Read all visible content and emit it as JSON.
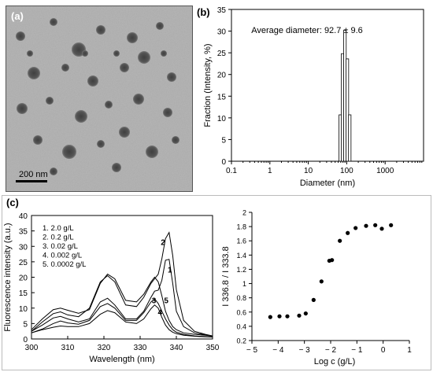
{
  "panels": {
    "a": {
      "label": "(a)",
      "scale_bar_label": "200 nm"
    },
    "b": {
      "label": "(b)"
    },
    "c": {
      "label": "(c)"
    }
  },
  "chart_data": [
    {
      "type": "bar",
      "panel": "b",
      "annotation": "Average diameter: 92.7 ± 9.6",
      "xlabel": "Diameter (nm)",
      "ylabel": "Fraction (Intensity, %)",
      "xscale": "log",
      "xlim": [
        0.1,
        10000
      ],
      "ylim": [
        0,
        35
      ],
      "xticks": [
        0.1,
        1,
        10,
        100,
        1000
      ],
      "xtick_labels": [
        "0.1",
        "1",
        "10",
        "100",
        "1000"
      ],
      "yticks": [
        0,
        5,
        10,
        15,
        20,
        25,
        30,
        35
      ],
      "x": [
        68,
        78,
        90,
        104,
        120
      ],
      "values": [
        10.7,
        24.8,
        30.2,
        23.6,
        10.7
      ]
    },
    {
      "type": "line",
      "panel": "c-left",
      "xlabel": "Wavelength (nm)",
      "ylabel": "Fluorescence intensity (a.u.)",
      "xlim": [
        300,
        350
      ],
      "ylim": [
        0,
        40
      ],
      "xticks": [
        300,
        310,
        320,
        330,
        340,
        350
      ],
      "yticks": [
        0,
        5,
        10,
        15,
        20,
        25,
        30,
        35,
        40
      ],
      "legend": [
        "1.  2.0 g/L",
        "2.  0.2 g/L",
        "3.  0.02 g/L",
        "4.  0.002 g/L",
        "5.  0.0002 g/L"
      ],
      "curve_labels": [
        "1",
        "2",
        "3",
        "4",
        "5"
      ],
      "series": [
        {
          "id": "1",
          "x": [
            300,
            303,
            306,
            308,
            310,
            313,
            316,
            319,
            321,
            323,
            326,
            329,
            331,
            333,
            334,
            335,
            336,
            337,
            338,
            339,
            340,
            342,
            345,
            348,
            350
          ],
          "y": [
            2.5,
            4.5,
            6.8,
            7.3,
            6.5,
            5.5,
            6.5,
            12,
            13.2,
            11,
            6.5,
            6.5,
            9,
            13.5,
            15.5,
            15.8,
            19,
            25.5,
            25.8,
            18,
            9,
            4,
            2,
            1.3,
            1
          ]
        },
        {
          "id": "2",
          "x": [
            300,
            303,
            306,
            308,
            310,
            313,
            316,
            319,
            321,
            323,
            326,
            329,
            331,
            333,
            334,
            335,
            336,
            337,
            338,
            339,
            340,
            342,
            345,
            348,
            350
          ],
          "y": [
            2.5,
            5.5,
            8.2,
            8.8,
            7.8,
            7.2,
            10,
            18.5,
            20.5,
            18.5,
            11,
            10.5,
            13.5,
            18,
            19.5,
            21,
            26,
            32.5,
            34.5,
            27,
            16,
            6,
            2.5,
            1.5,
            1
          ]
        },
        {
          "id": "3",
          "x": [
            300,
            303,
            306,
            308,
            310,
            313,
            316,
            319,
            321,
            323,
            326,
            329,
            331,
            333,
            334,
            335,
            336,
            337,
            338,
            339,
            340,
            342,
            345,
            348,
            350
          ],
          "y": [
            2,
            3.2,
            5,
            5.8,
            5.2,
            4.8,
            6,
            10.5,
            11.5,
            10,
            6,
            6,
            8.5,
            12,
            13,
            11.5,
            9,
            6.5,
            4.5,
            3,
            2.2,
            1.5,
            1,
            0.8,
            0.7
          ]
        },
        {
          "id": "4",
          "x": [
            300,
            303,
            306,
            308,
            310,
            313,
            316,
            319,
            321,
            323,
            326,
            329,
            331,
            333,
            334,
            335,
            336,
            337,
            338,
            339,
            340,
            342,
            345,
            348,
            350
          ],
          "y": [
            2,
            3,
            3.8,
            4.2,
            4,
            4,
            5,
            8,
            9.2,
            8.5,
            5.5,
            5,
            6.5,
            9.8,
            11,
            10,
            7,
            4.5,
            3,
            2.2,
            1.7,
            1.2,
            0.9,
            0.7,
            0.6
          ]
        },
        {
          "id": "5",
          "x": [
            300,
            303,
            306,
            308,
            310,
            313,
            316,
            319,
            321,
            323,
            326,
            329,
            331,
            333,
            334,
            335,
            336,
            337,
            338,
            339,
            340,
            342,
            345,
            348,
            350
          ],
          "y": [
            3,
            6.5,
            9.5,
            10,
            9.3,
            8.3,
            9.5,
            18,
            21,
            19.5,
            12.5,
            12,
            14.5,
            18.5,
            20,
            18.5,
            14,
            9,
            6,
            4,
            3,
            2,
            1.5,
            1.2,
            1
          ]
        }
      ]
    },
    {
      "type": "scatter",
      "panel": "c-right",
      "xlabel": "Log c (g/L)",
      "ylabel": "I 336.8 / I 333.8",
      "xlim": [
        -5,
        1
      ],
      "ylim": [
        0.2,
        2.0
      ],
      "xticks": [
        -5,
        -4,
        -3,
        -2,
        -1,
        0,
        1
      ],
      "xtick_labels": [
        "− 5",
        "− 4",
        "− 3",
        "− 2",
        "− 1",
        "0",
        "1"
      ],
      "yticks": [
        0.2,
        0.4,
        0.6,
        0.8,
        1.0,
        1.2,
        1.4,
        1.6,
        1.8,
        2.0
      ],
      "ytick_labels": [
        "0.2",
        "0.4",
        "0.6",
        "0.8",
        "1",
        "1.2",
        "1.4",
        "1.6",
        "1.8",
        "2"
      ],
      "x": [
        -4.3,
        -3.95,
        -3.65,
        -3.2,
        -2.95,
        -2.65,
        -2.35,
        -2.05,
        -1.95,
        -1.65,
        -1.35,
        -1.05,
        -0.65,
        -0.3,
        -0.05,
        0.3
      ],
      "y": [
        0.53,
        0.54,
        0.54,
        0.55,
        0.58,
        0.77,
        1.03,
        1.32,
        1.33,
        1.6,
        1.71,
        1.78,
        1.81,
        1.82,
        1.77,
        1.82
      ]
    }
  ]
}
